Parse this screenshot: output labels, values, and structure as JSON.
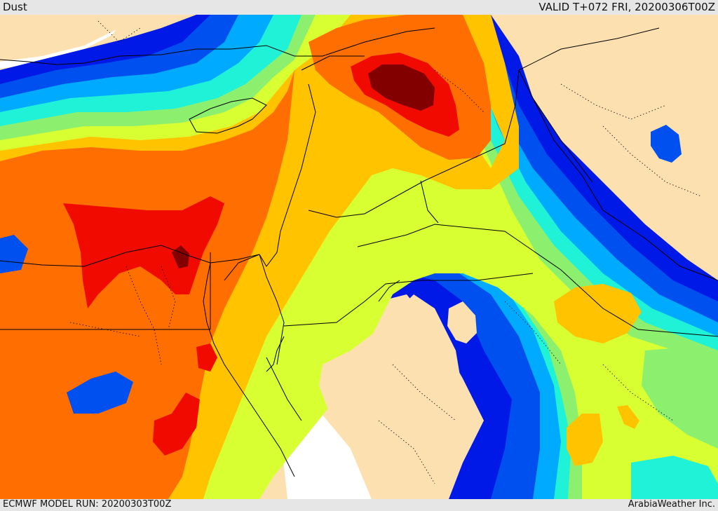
{
  "header": {
    "field_name": "Dust",
    "valid_time": "VALID T+072 FRI, 20200306T00Z"
  },
  "footer": {
    "model_run": "ECMWF MODEL RUN: 20200303T00Z",
    "credit": "ArabiaWeather Inc."
  },
  "palette": {
    "land": "#fde0b0",
    "no_data": "#ffffff",
    "blue_dark": "#0019e6",
    "blue": "#0050f0",
    "sky": "#00aaff",
    "cyan": "#1ff2d7",
    "green": "#8cf06e",
    "lime": "#d7ff32",
    "yellow": "#ffc300",
    "orange": "#ff6e00",
    "red": "#f00a00",
    "dark_red": "#820000",
    "border": "#000000"
  }
}
